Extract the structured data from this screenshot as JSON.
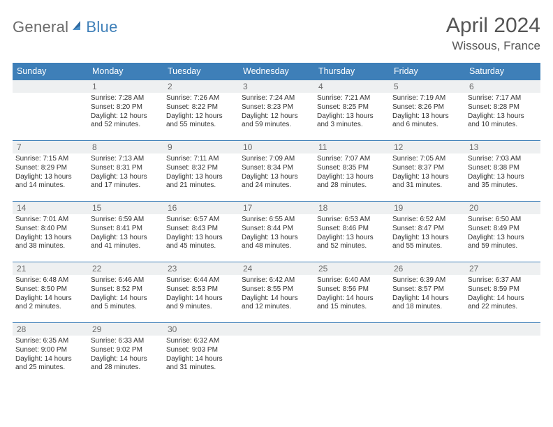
{
  "logo": {
    "part1": "General",
    "part2": "Blue"
  },
  "title": "April 2024",
  "location": "Wissous, France",
  "weekdays": [
    "Sunday",
    "Monday",
    "Tuesday",
    "Wednesday",
    "Thursday",
    "Friday",
    "Saturday"
  ],
  "colors": {
    "header_bg": "#3e7fb8",
    "header_fg": "#ffffff",
    "daynum_bg": "#eef0f1",
    "rule": "#3e7fb8",
    "text": "#333333",
    "muted": "#6b6b6b"
  },
  "fonts": {
    "title_pt": 30,
    "location_pt": 17,
    "weekday_pt": 12.5,
    "daynum_pt": 12,
    "body_pt": 10
  },
  "layout": {
    "cols": 7,
    "rows": 5,
    "first_weekday_index": 1
  },
  "days": [
    {
      "n": 1,
      "sunrise": "7:28 AM",
      "sunset": "8:20 PM",
      "daylight": "12 hours and 52 minutes."
    },
    {
      "n": 2,
      "sunrise": "7:26 AM",
      "sunset": "8:22 PM",
      "daylight": "12 hours and 55 minutes."
    },
    {
      "n": 3,
      "sunrise": "7:24 AM",
      "sunset": "8:23 PM",
      "daylight": "12 hours and 59 minutes."
    },
    {
      "n": 4,
      "sunrise": "7:21 AM",
      "sunset": "8:25 PM",
      "daylight": "13 hours and 3 minutes."
    },
    {
      "n": 5,
      "sunrise": "7:19 AM",
      "sunset": "8:26 PM",
      "daylight": "13 hours and 6 minutes."
    },
    {
      "n": 6,
      "sunrise": "7:17 AM",
      "sunset": "8:28 PM",
      "daylight": "13 hours and 10 minutes."
    },
    {
      "n": 7,
      "sunrise": "7:15 AM",
      "sunset": "8:29 PM",
      "daylight": "13 hours and 14 minutes."
    },
    {
      "n": 8,
      "sunrise": "7:13 AM",
      "sunset": "8:31 PM",
      "daylight": "13 hours and 17 minutes."
    },
    {
      "n": 9,
      "sunrise": "7:11 AM",
      "sunset": "8:32 PM",
      "daylight": "13 hours and 21 minutes."
    },
    {
      "n": 10,
      "sunrise": "7:09 AM",
      "sunset": "8:34 PM",
      "daylight": "13 hours and 24 minutes."
    },
    {
      "n": 11,
      "sunrise": "7:07 AM",
      "sunset": "8:35 PM",
      "daylight": "13 hours and 28 minutes."
    },
    {
      "n": 12,
      "sunrise": "7:05 AM",
      "sunset": "8:37 PM",
      "daylight": "13 hours and 31 minutes."
    },
    {
      "n": 13,
      "sunrise": "7:03 AM",
      "sunset": "8:38 PM",
      "daylight": "13 hours and 35 minutes."
    },
    {
      "n": 14,
      "sunrise": "7:01 AM",
      "sunset": "8:40 PM",
      "daylight": "13 hours and 38 minutes."
    },
    {
      "n": 15,
      "sunrise": "6:59 AM",
      "sunset": "8:41 PM",
      "daylight": "13 hours and 41 minutes."
    },
    {
      "n": 16,
      "sunrise": "6:57 AM",
      "sunset": "8:43 PM",
      "daylight": "13 hours and 45 minutes."
    },
    {
      "n": 17,
      "sunrise": "6:55 AM",
      "sunset": "8:44 PM",
      "daylight": "13 hours and 48 minutes."
    },
    {
      "n": 18,
      "sunrise": "6:53 AM",
      "sunset": "8:46 PM",
      "daylight": "13 hours and 52 minutes."
    },
    {
      "n": 19,
      "sunrise": "6:52 AM",
      "sunset": "8:47 PM",
      "daylight": "13 hours and 55 minutes."
    },
    {
      "n": 20,
      "sunrise": "6:50 AM",
      "sunset": "8:49 PM",
      "daylight": "13 hours and 59 minutes."
    },
    {
      "n": 21,
      "sunrise": "6:48 AM",
      "sunset": "8:50 PM",
      "daylight": "14 hours and 2 minutes."
    },
    {
      "n": 22,
      "sunrise": "6:46 AM",
      "sunset": "8:52 PM",
      "daylight": "14 hours and 5 minutes."
    },
    {
      "n": 23,
      "sunrise": "6:44 AM",
      "sunset": "8:53 PM",
      "daylight": "14 hours and 9 minutes."
    },
    {
      "n": 24,
      "sunrise": "6:42 AM",
      "sunset": "8:55 PM",
      "daylight": "14 hours and 12 minutes."
    },
    {
      "n": 25,
      "sunrise": "6:40 AM",
      "sunset": "8:56 PM",
      "daylight": "14 hours and 15 minutes."
    },
    {
      "n": 26,
      "sunrise": "6:39 AM",
      "sunset": "8:57 PM",
      "daylight": "14 hours and 18 minutes."
    },
    {
      "n": 27,
      "sunrise": "6:37 AM",
      "sunset": "8:59 PM",
      "daylight": "14 hours and 22 minutes."
    },
    {
      "n": 28,
      "sunrise": "6:35 AM",
      "sunset": "9:00 PM",
      "daylight": "14 hours and 25 minutes."
    },
    {
      "n": 29,
      "sunrise": "6:33 AM",
      "sunset": "9:02 PM",
      "daylight": "14 hours and 28 minutes."
    },
    {
      "n": 30,
      "sunrise": "6:32 AM",
      "sunset": "9:03 PM",
      "daylight": "14 hours and 31 minutes."
    }
  ],
  "labels": {
    "sunrise": "Sunrise:",
    "sunset": "Sunset:",
    "daylight": "Daylight:"
  }
}
